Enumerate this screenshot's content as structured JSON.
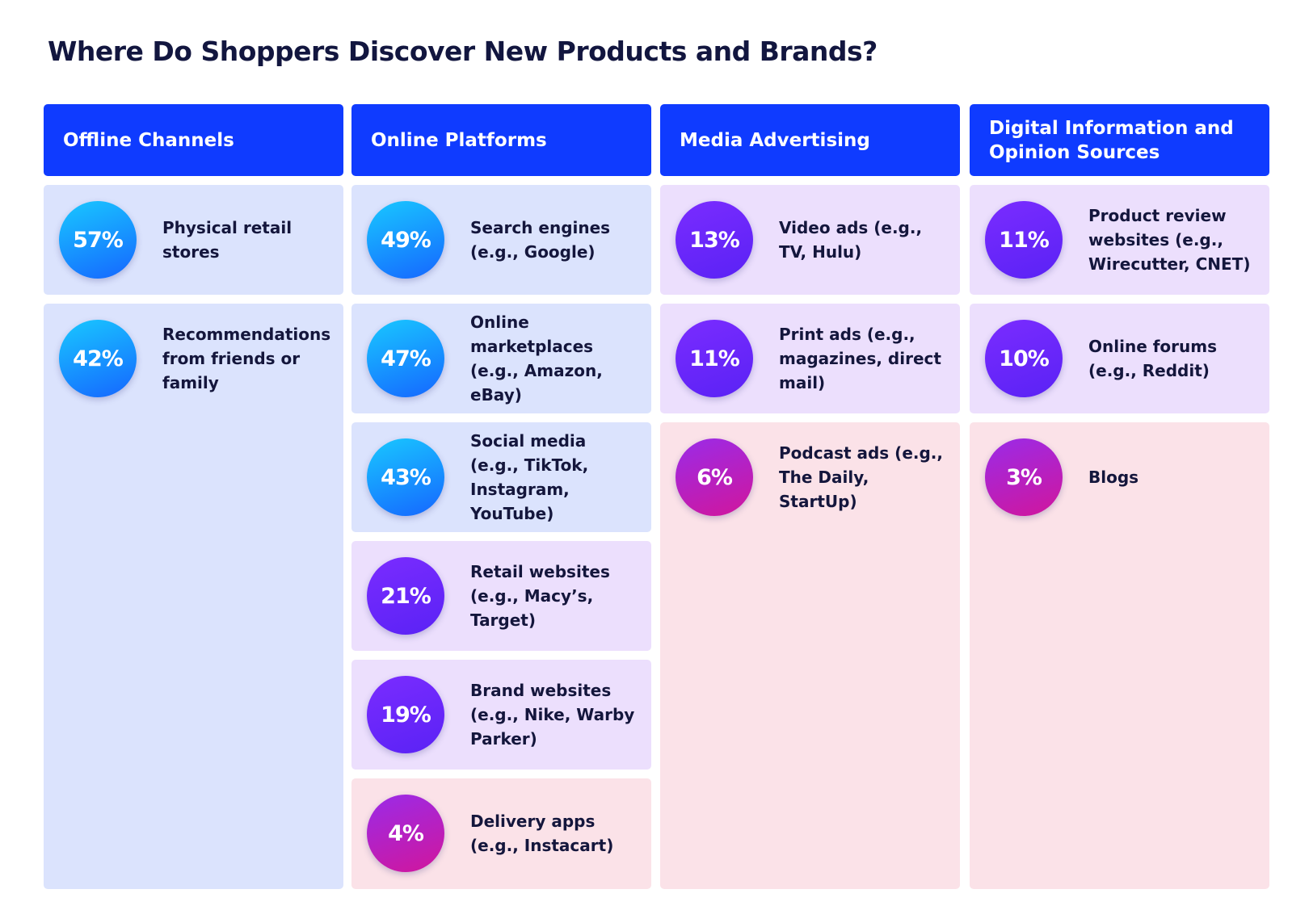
{
  "title": "Where Do Shoppers Discover New Products and Brands?",
  "columns": [
    {
      "title": "Offline Channels",
      "items": [
        {
          "value": "57%",
          "label": "Physical retail stores",
          "color": "#dbe3fd"
        },
        {
          "value": "42%",
          "label": "Recommendations from friends or family",
          "color": "#dbe3fd"
        }
      ]
    },
    {
      "title": "Online Platforms",
      "items": [
        {
          "value": "49%",
          "label": "Search engines (e.g., Google)",
          "color": "#dbe3fd"
        },
        {
          "value": "47%",
          "label": "Online marketplaces (e.g., Amazon, eBay)",
          "color": "#dbe3fd"
        },
        {
          "value": "43%",
          "label": "Social media (e.g., TikTok, Instagram, YouTube)",
          "color": "#dbe3fd"
        },
        {
          "value": "21%",
          "label": "Retail websites (e.g., Macy’s, Target)",
          "color": "#ecdffd"
        },
        {
          "value": "19%",
          "label": "Brand websites (e.g., Nike, Warby Parker)",
          "color": "#ecdffd"
        },
        {
          "value": "4%",
          "label": "Delivery apps (e.g., Instacart)",
          "color": "#fbe2e8"
        }
      ]
    },
    {
      "title": "Media Advertising",
      "items": [
        {
          "value": "13%",
          "label": "Video ads (e.g., TV, Hulu)",
          "color": "#ecdffd"
        },
        {
          "value": "11%",
          "label": "Print ads (e.g., magazines, direct mail)",
          "color": "#ecdffd"
        },
        {
          "value": "6%",
          "label": "Podcast ads (e.g., The Daily, StartUp)",
          "color": "#fbe2e8"
        }
      ]
    },
    {
      "title": "Digital Information and Opinion Sources",
      "items": [
        {
          "value": "11%",
          "label": "Product review websites (e.g., Wirecutter, CNET)",
          "color": "#ecdffd"
        },
        {
          "value": "10%",
          "label": "Online forums (e.g., Reddit)",
          "color": "#ecdffd"
        },
        {
          "value": "3%",
          "label": "Blogs",
          "color": "#fbe2e8"
        }
      ]
    }
  ]
}
